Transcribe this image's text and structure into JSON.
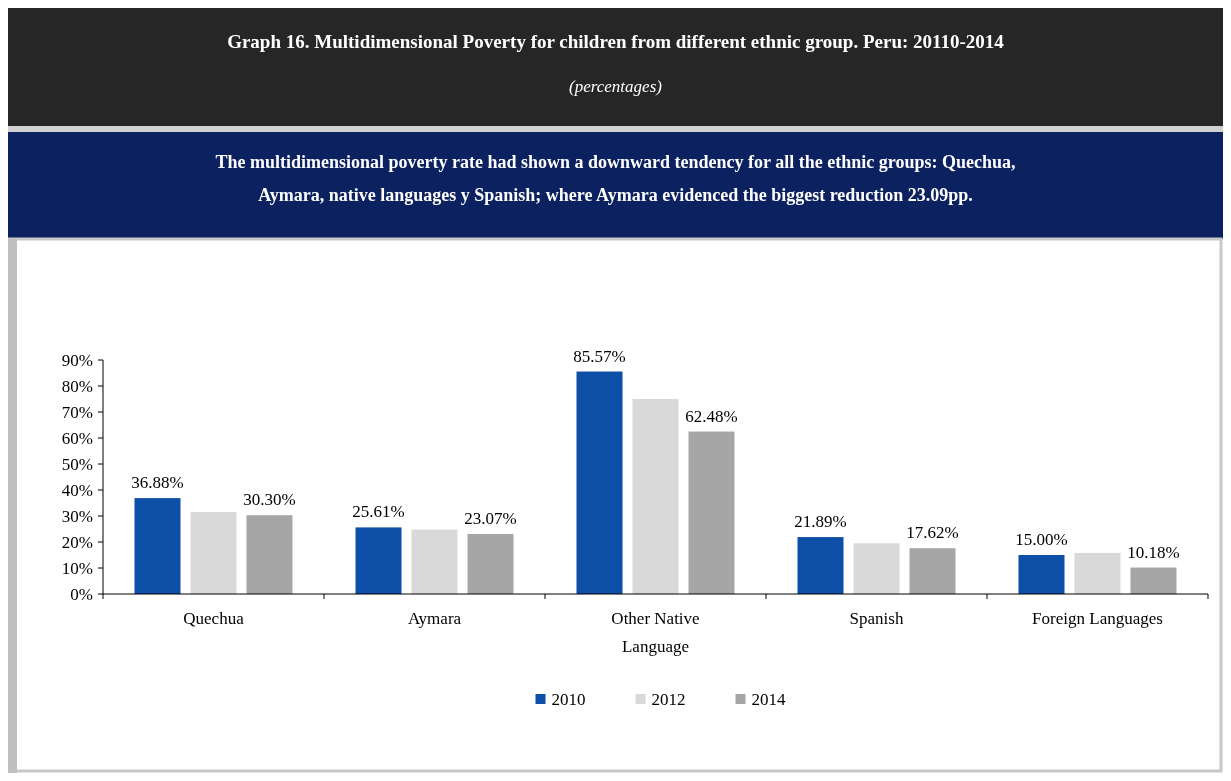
{
  "chart_data": {
    "type": "bar",
    "title": "Graph 16. Multidimensional Poverty for children from different ethnic group. Peru: 20110-2014",
    "subtitle": "(percentages)",
    "annotations": [
      "The multidimensional  poverty rate had shown a downward tendency for all the ethnic groups: Quechua, Aymara, native languages  y Spanish; where Aymara evidenced the biggest reduction 23.09pp."
    ],
    "categories": [
      "Quechua",
      "Aymara",
      "Other Native Language",
      "Spanish",
      "Foreign Languages"
    ],
    "series": [
      {
        "name": "2010",
        "color": "#0d4ea6",
        "values": [
          36.88,
          25.61,
          85.57,
          21.89,
          15.0
        ],
        "value_labels": [
          "36.88%",
          "25.61%",
          "85.57%",
          "21.89%",
          "15.00%"
        ]
      },
      {
        "name": "2012",
        "color": "#d9d9d9",
        "values": [
          31.5,
          24.8,
          75,
          19.5,
          15.8
        ]
      },
      {
        "name": "2014",
        "color": "#a6a6a6",
        "values": [
          30.3,
          23.07,
          62.48,
          17.62,
          10.18
        ],
        "value_labels": [
          "30.30%",
          "23.07%",
          "62.48%",
          "17.62%",
          "10.18%"
        ]
      }
    ],
    "ylim": [
      0,
      90
    ],
    "yticks": [
      {
        "value": 0,
        "label": "0%"
      },
      {
        "value": 10,
        "label": "10%"
      },
      {
        "value": 20,
        "label": "20%"
      },
      {
        "value": 30,
        "label": "30%"
      },
      {
        "value": 40,
        "label": "40%"
      },
      {
        "value": 50,
        "label": "50%"
      },
      {
        "value": 60,
        "label": "60%"
      },
      {
        "value": 70,
        "label": "70%"
      },
      {
        "value": 80,
        "label": "80%"
      },
      {
        "value": 90,
        "label": "90%"
      }
    ],
    "grid": false,
    "legend": "bottom"
  }
}
